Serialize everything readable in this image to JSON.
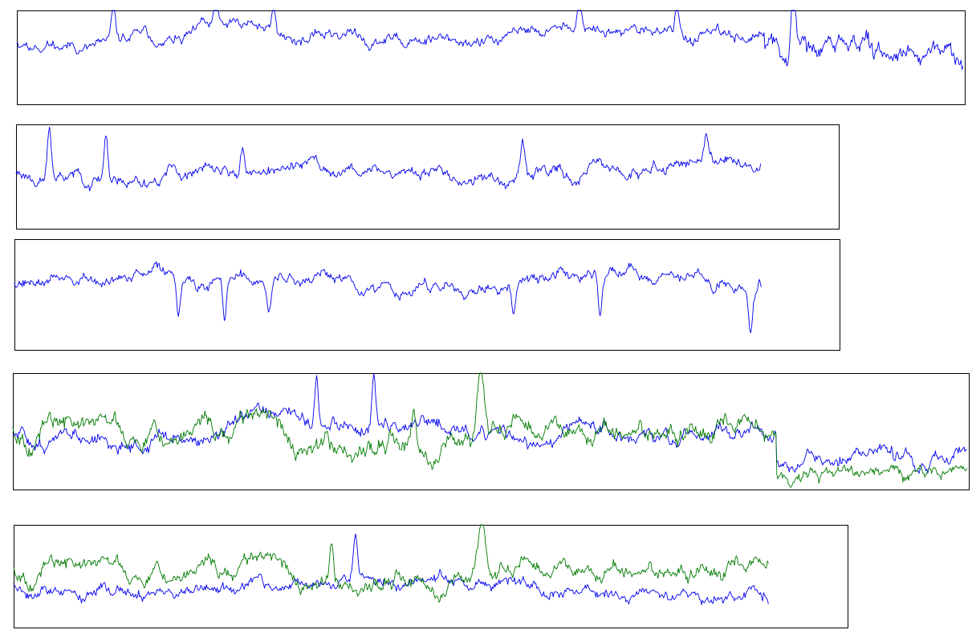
{
  "colors": {
    "blue": "#0000ee",
    "green": "#007a00",
    "frame": "#000000",
    "background": "#ffffff"
  },
  "chart_data": [
    {
      "type": "line",
      "title": "",
      "xlabel": "",
      "ylabel": "",
      "grid": false,
      "legend": "none",
      "x_range": [
        0,
        1000
      ],
      "y_range": [
        -1,
        1
      ],
      "series": [
        {
          "color": "blue",
          "seed": 11,
          "points": 1000,
          "baseline": 0.35,
          "amplitude": 0.22,
          "spike_count": 6,
          "spike_sign": 1,
          "segments": [
            {
              "from": 0.79,
              "to": 1.0,
              "shift": -0.35,
              "gain": 1.9
            }
          ]
        }
      ]
    },
    {
      "type": "line",
      "title": "",
      "xlabel": "",
      "ylabel": "",
      "grid": false,
      "legend": "none",
      "x_range": [
        0,
        1000
      ],
      "y_range": [
        -1,
        1
      ],
      "extent": 0.905,
      "series": [
        {
          "color": "blue",
          "seed": 23,
          "points": 780,
          "baseline": 0.1,
          "amplitude": 0.22,
          "spike_count": 5,
          "spike_sign": 1
        }
      ]
    },
    {
      "type": "line",
      "title": "",
      "xlabel": "",
      "ylabel": "",
      "grid": false,
      "legend": "none",
      "x_range": [
        0,
        1000
      ],
      "y_range": [
        -1,
        1
      ],
      "extent": 0.905,
      "series": [
        {
          "color": "blue",
          "seed": 37,
          "points": 780,
          "baseline": 0.25,
          "amplitude": 0.2,
          "spike_count": 6,
          "spike_sign": -1
        }
      ]
    },
    {
      "type": "line",
      "title": "",
      "xlabel": "",
      "ylabel": "",
      "grid": false,
      "legend": "none",
      "x_range": [
        0,
        1000
      ],
      "y_range": [
        -1,
        1
      ],
      "series": [
        {
          "color": "blue",
          "seed": 51,
          "points": 1000,
          "baseline": -0.05,
          "amplitude": 0.24,
          "spike_count": 2,
          "spike_sign": 1,
          "segments": [
            {
              "from": 0.8,
              "to": 1.0,
              "shift": -0.45,
              "gain": 1.0
            }
          ]
        },
        {
          "color": "green",
          "seed": 67,
          "points": 1000,
          "baseline": 0.1,
          "amplitude": 0.3,
          "spike_count": 1,
          "spike_sign": 1,
          "big_spike_at": 0.49,
          "segments": [
            {
              "from": 0.8,
              "to": 1.0,
              "shift": -0.75,
              "gain": 0.7
            }
          ]
        }
      ]
    },
    {
      "type": "line",
      "title": "",
      "xlabel": "",
      "ylabel": "",
      "grid": false,
      "legend": "none",
      "x_range": [
        0,
        1000
      ],
      "y_range": [
        -1,
        1
      ],
      "extent": 0.905,
      "series": [
        {
          "color": "blue",
          "seed": 79,
          "points": 780,
          "baseline": -0.15,
          "amplitude": 0.22,
          "spike_count": 1,
          "spike_sign": 1
        },
        {
          "color": "green",
          "seed": 67,
          "points": 780,
          "baseline": 0.2,
          "amplitude": 0.28,
          "spike_count": 1,
          "spike_sign": 1,
          "big_spike_at": 0.62
        }
      ]
    }
  ]
}
